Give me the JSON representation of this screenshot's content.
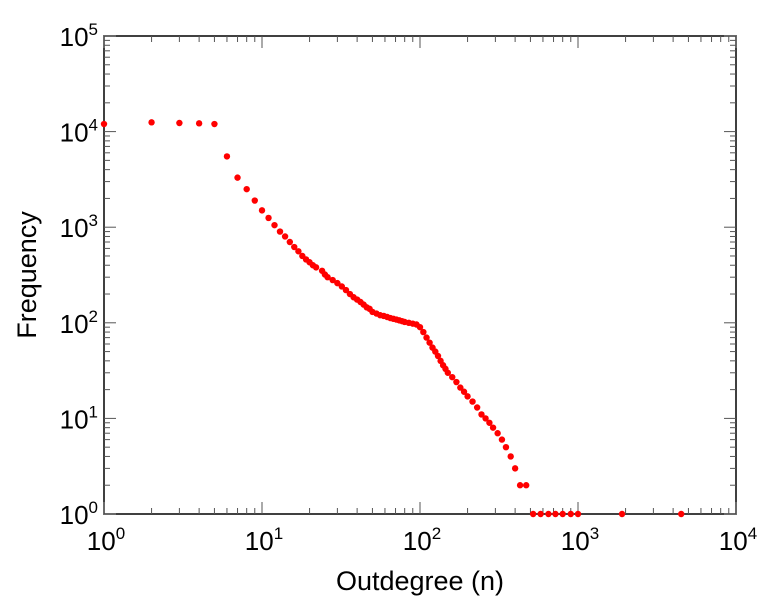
{
  "chart_data": {
    "type": "scatter",
    "title": "",
    "xlabel": "Outdegree (n)",
    "ylabel": "Frequency",
    "xscale": "log",
    "yscale": "log",
    "xlim": [
      1,
      10000
    ],
    "ylim": [
      1,
      100000
    ],
    "x_major_ticks": [
      {
        "base": "10",
        "exp": "0"
      },
      {
        "base": "10",
        "exp": "1"
      },
      {
        "base": "10",
        "exp": "2"
      },
      {
        "base": "10",
        "exp": "3"
      },
      {
        "base": "10",
        "exp": "4"
      }
    ],
    "y_major_ticks": [
      {
        "base": "10",
        "exp": "0"
      },
      {
        "base": "10",
        "exp": "1"
      },
      {
        "base": "10",
        "exp": "2"
      },
      {
        "base": "10",
        "exp": "3"
      },
      {
        "base": "10",
        "exp": "4"
      },
      {
        "base": "10",
        "exp": "5"
      }
    ],
    "grid": false,
    "marker_color": "#ff0000",
    "series": [
      {
        "points": [
          [
            1,
            12000
          ],
          [
            2,
            12500
          ],
          [
            3,
            12300
          ],
          [
            4,
            12200
          ],
          [
            5,
            12000
          ],
          [
            6,
            5500
          ],
          [
            7,
            3300
          ],
          [
            8,
            2500
          ],
          [
            9,
            1900
          ],
          [
            10,
            1500
          ],
          [
            11,
            1250
          ],
          [
            12,
            1050
          ],
          [
            13,
            900
          ],
          [
            14,
            800
          ],
          [
            15,
            700
          ],
          [
            16,
            620
          ],
          [
            17,
            560
          ],
          [
            18,
            500
          ],
          [
            19,
            460
          ],
          [
            20,
            430
          ],
          [
            21,
            400
          ],
          [
            22,
            380
          ],
          [
            24,
            350
          ],
          [
            25,
            320
          ],
          [
            26,
            300
          ],
          [
            28,
            280
          ],
          [
            30,
            260
          ],
          [
            32,
            240
          ],
          [
            34,
            220
          ],
          [
            36,
            200
          ],
          [
            38,
            185
          ],
          [
            40,
            175
          ],
          [
            42,
            165
          ],
          [
            44,
            155
          ],
          [
            46,
            145
          ],
          [
            48,
            140
          ],
          [
            50,
            130
          ],
          [
            53,
            125
          ],
          [
            56,
            120
          ],
          [
            59,
            118
          ],
          [
            62,
            115
          ],
          [
            65,
            112
          ],
          [
            68,
            110
          ],
          [
            71,
            108
          ],
          [
            74,
            106
          ],
          [
            77,
            104
          ],
          [
            80,
            102
          ],
          [
            85,
            100
          ],
          [
            90,
            98
          ],
          [
            95,
            96
          ],
          [
            100,
            90
          ],
          [
            105,
            80
          ],
          [
            110,
            70
          ],
          [
            115,
            62
          ],
          [
            120,
            55
          ],
          [
            125,
            50
          ],
          [
            130,
            45
          ],
          [
            135,
            40
          ],
          [
            140,
            36
          ],
          [
            145,
            33
          ],
          [
            150,
            30
          ],
          [
            160,
            27
          ],
          [
            170,
            24
          ],
          [
            180,
            21
          ],
          [
            190,
            19
          ],
          [
            200,
            17
          ],
          [
            215,
            15
          ],
          [
            230,
            13
          ],
          [
            245,
            11
          ],
          [
            260,
            10
          ],
          [
            275,
            9
          ],
          [
            290,
            8
          ],
          [
            310,
            7
          ],
          [
            330,
            6
          ],
          [
            350,
            5
          ],
          [
            375,
            4
          ],
          [
            400,
            3
          ],
          [
            430,
            2
          ],
          [
            470,
            2
          ],
          [
            520,
            1
          ],
          [
            580,
            1
          ],
          [
            650,
            1
          ],
          [
            720,
            1
          ],
          [
            800,
            1
          ],
          [
            900,
            1
          ],
          [
            1000,
            1
          ],
          [
            1900,
            1
          ],
          [
            4500,
            1
          ]
        ]
      }
    ]
  }
}
